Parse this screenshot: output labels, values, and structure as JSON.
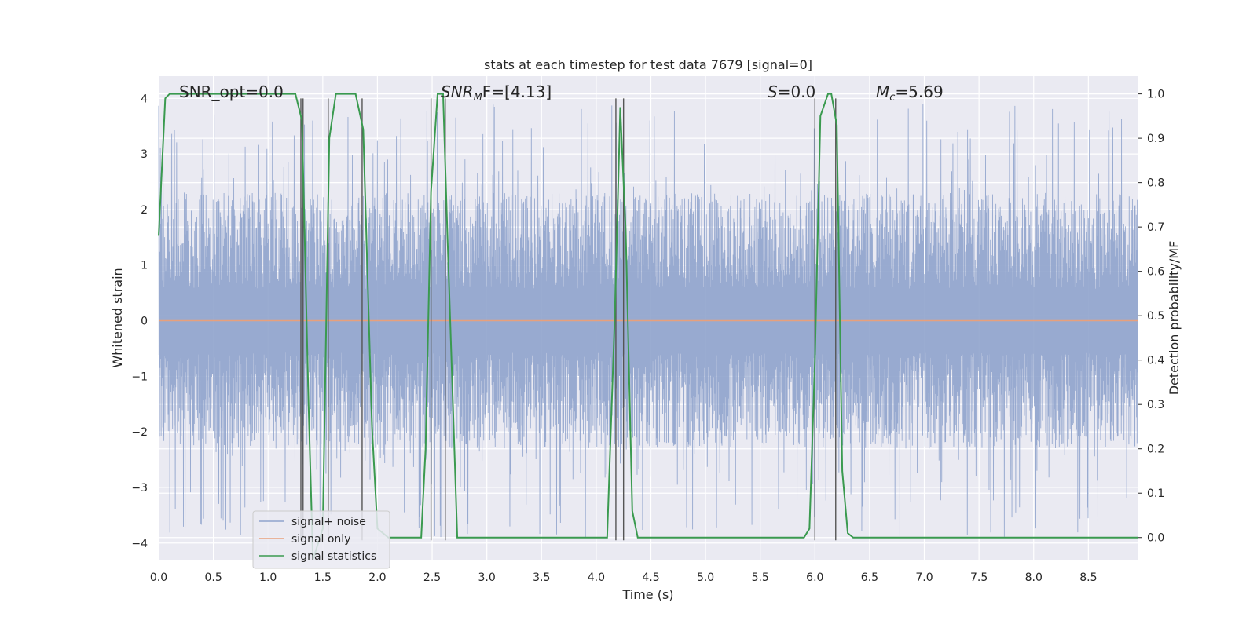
{
  "chart_data": {
    "type": "line",
    "title": "stats at each timestep for test data 7679 [signal=0]",
    "xlabel": "Time (s)",
    "ylabel": "Whitened strain",
    "y2label": "Detection probability/MF",
    "xlim": [
      0.0,
      8.95
    ],
    "ylim": [
      -4.3,
      4.4
    ],
    "y2lim": [
      -0.05,
      1.04
    ],
    "x_ticks": [
      "0.0",
      "0.5",
      "1.0",
      "1.5",
      "2.0",
      "2.5",
      "3.0",
      "3.5",
      "4.0",
      "4.5",
      "5.0",
      "5.5",
      "6.0",
      "6.5",
      "7.0",
      "7.5",
      "8.0",
      "8.5"
    ],
    "y_ticks": [
      "−4",
      "−3",
      "−2",
      "−1",
      "0",
      "1",
      "2",
      "3",
      "4"
    ],
    "y2_ticks": [
      "0.0",
      "0.1",
      "0.2",
      "0.3",
      "0.4",
      "0.5",
      "0.6",
      "0.7",
      "0.8",
      "0.9",
      "1.0"
    ],
    "grid": true,
    "legend_position": "lower-left",
    "annotations": {
      "snr_opt": "SNR_opt=0.0",
      "snr_mf_base": "SNR",
      "snr_mf_sub": "M",
      "snr_mf_rest": "F=[4.13]",
      "s_var": "S",
      "s_rest": "=0.0",
      "mc_var": "M",
      "mc_sub": "c",
      "mc_rest": "=5.69"
    },
    "series": [
      {
        "name": "signal+ noise",
        "color": "#8fa3cc",
        "description_envelope": {
          "typical_abs": 2.3,
          "peak_abs": 3.9
        }
      },
      {
        "name": "signal only",
        "color": "#e8a07c",
        "x": [
          0.0,
          8.95
        ],
        "y": [
          0.0,
          0.0
        ]
      },
      {
        "name": "signal statistics",
        "color": "#3a9a4f",
        "axis": "right",
        "x": [
          0.0,
          0.06,
          0.1,
          1.2,
          1.25,
          1.31,
          1.37,
          1.41,
          1.5,
          1.56,
          1.62,
          1.8,
          1.87,
          1.95,
          2.0,
          2.1,
          2.4,
          2.44,
          2.49,
          2.55,
          2.6,
          2.64,
          2.69,
          2.73,
          2.8,
          4.1,
          4.17,
          4.22,
          4.27,
          4.33,
          4.38,
          4.45,
          5.9,
          5.95,
          6.0,
          6.05,
          6.12,
          6.15,
          6.2,
          6.25,
          6.3,
          6.35,
          8.95
        ],
        "y": [
          0.68,
          0.99,
          1.0,
          1.0,
          1.0,
          0.94,
          0.3,
          -0.05,
          0.02,
          0.9,
          1.0,
          1.0,
          0.92,
          0.25,
          0.02,
          0.0,
          0.0,
          0.2,
          0.78,
          1.0,
          1.0,
          0.68,
          0.3,
          0.0,
          0.0,
          0.0,
          0.5,
          0.97,
          0.69,
          0.06,
          0.0,
          0.0,
          0.0,
          0.02,
          0.4,
          0.95,
          1.0,
          1.0,
          0.93,
          0.15,
          0.01,
          0.0,
          0.0
        ]
      }
    ],
    "vlines_x": [
      1.3,
      1.32,
      1.55,
      1.86,
      2.49,
      2.62,
      4.18,
      4.25,
      6.0,
      6.19
    ]
  }
}
